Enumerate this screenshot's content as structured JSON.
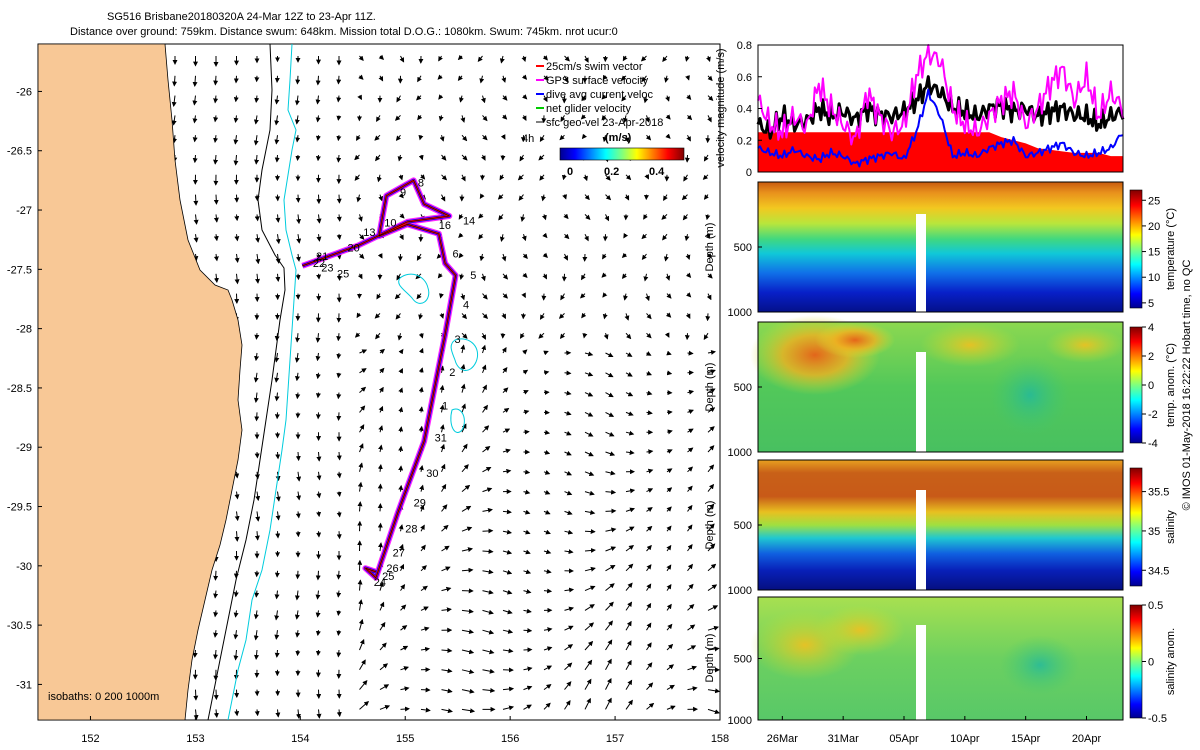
{
  "header": {
    "title_line1": "SG516 Brisbane20180320A 24-Mar 12Z to 23-Apr 11Z.",
    "title_line2": "Distance over ground: 759km. Distance swum: 648km. Mission total D.O.G.: 1080km. Swum: 745km. nrot ucur:0"
  },
  "footer": {
    "credit": "© IMOS 01-May-2018 16:22:22 Hobart time, no QC"
  },
  "colors": {
    "land": "#f8c896",
    "isobath_dark": "#000000",
    "isobath_cyan": "#00ccdd",
    "track_swim": "#ff0000",
    "track_gps": "#ff00ff",
    "track_dive": "#0000ff",
    "track_net": "#00cc00",
    "vel_black": "#000000",
    "vel_magenta": "#ff00ff",
    "vel_blue": "#0000ff",
    "vel_red": "#ff0000"
  },
  "chart_data": [
    {
      "type": "scatter",
      "title": "Glider track map",
      "xlabel": "",
      "ylabel": "",
      "xlim": [
        151.5,
        158.0
      ],
      "ylim": [
        -31.3,
        -25.6
      ],
      "x_ticks": [
        "152",
        "153",
        "154",
        "155",
        "156",
        "157",
        "158"
      ],
      "y_ticks": [
        "-26",
        "-26.5",
        "-27",
        "-27.5",
        "-28",
        "-28.5",
        "-29",
        "-29.5",
        "-30",
        "-30.5",
        "-31"
      ],
      "legend": {
        "items": [
          "25cm/s swim vector",
          "GPS surface velocity",
          "dive avg current veloc",
          "net glider velocity",
          "sfc geo-vel 23-Apr-2018"
        ],
        "interval_label": "4h",
        "colorbar_title": "(m/s)",
        "colorbar_ticks": [
          "0",
          "0.2",
          "0.4"
        ],
        "colorbar_range": [
          0,
          0.5
        ]
      },
      "isobath_note": "isobaths: 0   200  1000m",
      "track_waypoints": [
        {
          "lon": 154.72,
          "lat": -30.05
        },
        {
          "lon": 154.62,
          "lat": -30.02
        },
        {
          "lon": 154.72,
          "lat": -30.1
        },
        {
          "lon": 154.93,
          "lat": -29.55
        },
        {
          "lon": 155.18,
          "lat": -28.95
        },
        {
          "lon": 155.28,
          "lat": -28.5
        },
        {
          "lon": 155.38,
          "lat": -28.05
        },
        {
          "lon": 155.48,
          "lat": -27.55
        },
        {
          "lon": 155.38,
          "lat": -27.45
        },
        {
          "lon": 155.32,
          "lat": -27.2
        },
        {
          "lon": 155.02,
          "lat": -27.12
        },
        {
          "lon": 154.75,
          "lat": -27.22
        },
        {
          "lon": 154.82,
          "lat": -26.88
        },
        {
          "lon": 155.08,
          "lat": -26.75
        },
        {
          "lon": 155.18,
          "lat": -26.95
        },
        {
          "lon": 155.42,
          "lat": -27.05
        },
        {
          "lon": 155.02,
          "lat": -27.1
        },
        {
          "lon": 154.55,
          "lat": -27.3
        },
        {
          "lon": 154.02,
          "lat": -27.47
        }
      ],
      "day_labels": [
        {
          "text": "1",
          "lon": 155.35,
          "lat": -28.68
        },
        {
          "text": "2",
          "lon": 155.42,
          "lat": -28.4
        },
        {
          "text": "3",
          "lon": 155.47,
          "lat": -28.12
        },
        {
          "text": "4",
          "lon": 155.55,
          "lat": -27.83
        },
        {
          "text": "5",
          "lon": 155.62,
          "lat": -27.58
        },
        {
          "text": "6",
          "lon": 155.45,
          "lat": -27.4
        },
        {
          "text": "8",
          "lon": 155.12,
          "lat": -26.8
        },
        {
          "text": "9",
          "lon": 154.95,
          "lat": -26.88
        },
        {
          "text": "10",
          "lon": 154.8,
          "lat": -27.14
        },
        {
          "text": "13",
          "lon": 154.6,
          "lat": -27.22
        },
        {
          "text": "14",
          "lon": 155.55,
          "lat": -27.12
        },
        {
          "text": "16",
          "lon": 155.32,
          "lat": -27.16
        },
        {
          "text": "20",
          "lon": 154.45,
          "lat": -27.35
        },
        {
          "text": "21",
          "lon": 154.15,
          "lat": -27.42
        },
        {
          "text": "22",
          "lon": 154.12,
          "lat": -27.48
        },
        {
          "text": "23",
          "lon": 154.2,
          "lat": -27.52
        },
        {
          "text": "24",
          "lon": 154.7,
          "lat": -30.17
        },
        {
          "text": "25",
          "lon": 154.78,
          "lat": -30.12
        },
        {
          "text": "25",
          "lon": 154.35,
          "lat": -27.57
        },
        {
          "text": "26",
          "lon": 154.82,
          "lat": -30.05
        },
        {
          "text": "27",
          "lon": 154.88,
          "lat": -29.92
        },
        {
          "text": "28",
          "lon": 155.0,
          "lat": -29.72
        },
        {
          "text": "29",
          "lon": 155.08,
          "lat": -29.5
        },
        {
          "text": "30",
          "lon": 155.2,
          "lat": -29.25
        },
        {
          "text": "31",
          "lon": 155.28,
          "lat": -28.95
        }
      ]
    },
    {
      "type": "line",
      "title": "Velocity magnitude",
      "ylabel": "velocity magnitude (m/s)",
      "ylim": [
        0,
        0.8
      ],
      "y_ticks": [
        "0.8",
        "0.6",
        "0.4",
        "0.2",
        "0"
      ],
      "days_span": 30,
      "series": [
        {
          "name": "GPS surface velocity",
          "color": "#ff00ff",
          "values": [
            0.45,
            0.3,
            0.25,
            0.35,
            0.28,
            0.55,
            0.4,
            0.3,
            0.2,
            0.5,
            0.35,
            0.25,
            0.3,
            0.6,
            0.75,
            0.7,
            0.4,
            0.3,
            0.25,
            0.35,
            0.45,
            0.5,
            0.3,
            0.4,
            0.55,
            0.65,
            0.45,
            0.6,
            0.35,
            0.5,
            0.4
          ]
        },
        {
          "name": "net glider velocity",
          "color": "#000000",
          "values": [
            0.3,
            0.25,
            0.35,
            0.3,
            0.32,
            0.4,
            0.35,
            0.38,
            0.33,
            0.4,
            0.36,
            0.35,
            0.38,
            0.45,
            0.55,
            0.5,
            0.4,
            0.38,
            0.35,
            0.4,
            0.42,
            0.38,
            0.4,
            0.35,
            0.38,
            0.4,
            0.36,
            0.35,
            0.3,
            0.35,
            0.38
          ]
        },
        {
          "name": "dive avg current veloc",
          "color": "#0000ff",
          "values": [
            0.15,
            0.12,
            0.1,
            0.14,
            0.1,
            0.08,
            0.12,
            0.1,
            0.05,
            0.08,
            0.1,
            0.12,
            0.08,
            0.25,
            0.5,
            0.35,
            0.1,
            0.12,
            0.1,
            0.15,
            0.18,
            0.2,
            0.1,
            0.12,
            0.15,
            0.18,
            0.12,
            0.1,
            0.12,
            0.15,
            0.25
          ]
        },
        {
          "name": "swim speed",
          "color": "#ff0000",
          "values": [
            0.25,
            0.25,
            0.25,
            0.25,
            0.25,
            0.25,
            0.25,
            0.25,
            0.25,
            0.25,
            0.25,
            0.25,
            0.25,
            0.25,
            0.25,
            0.25,
            0.25,
            0.25,
            0.25,
            0.25,
            0.22,
            0.2,
            0.18,
            0.15,
            0.14,
            0.13,
            0.12,
            0.12,
            0.12,
            0.1,
            0.1
          ]
        }
      ]
    },
    {
      "type": "heatmap",
      "title": "temperature section",
      "ylabel": "Depth (m)",
      "y_ticks": [
        "500",
        "1000"
      ],
      "ylim": [
        1000,
        0
      ],
      "colorbar_label": "temperature (°C)",
      "colorbar_ticks": [
        "25",
        "20",
        "15",
        "10",
        "5"
      ],
      "colorbar_range": [
        4,
        27
      ],
      "gap_days": [
        11.6,
        12.2
      ]
    },
    {
      "type": "heatmap",
      "title": "temperature anomaly section",
      "ylabel": "Depth (m)",
      "y_ticks": [
        "500",
        "1000"
      ],
      "ylim": [
        1000,
        0
      ],
      "colorbar_label": "temp. anom. (°C)",
      "colorbar_ticks": [
        "4",
        "2",
        "0",
        "-2",
        "-4"
      ],
      "colorbar_range": [
        -4,
        4
      ],
      "gap_days": [
        11.6,
        12.2
      ]
    },
    {
      "type": "heatmap",
      "title": "salinity section",
      "ylabel": "Depth (m)",
      "y_ticks": [
        "500",
        "1000"
      ],
      "ylim": [
        1000,
        0
      ],
      "colorbar_label": "salinity",
      "colorbar_ticks": [
        "35.5",
        "35",
        "34.5"
      ],
      "colorbar_range": [
        34.3,
        35.8
      ],
      "gap_days": [
        11.6,
        12.2
      ]
    },
    {
      "type": "heatmap",
      "title": "salinity anomaly section",
      "ylabel": "Depth (m)",
      "y_ticks": [
        "500",
        "1000"
      ],
      "ylim": [
        1000,
        0
      ],
      "colorbar_label": "salinity anom.",
      "colorbar_ticks": [
        "0.5",
        "0",
        "-0.5"
      ],
      "colorbar_range": [
        -0.5,
        0.5
      ],
      "gap_days": [
        11.6,
        12.2
      ],
      "x_ticks": [
        "26Mar",
        "31Mar",
        "05Apr",
        "10Apr",
        "15Apr",
        "20Apr"
      ],
      "x_tick_days": [
        2,
        7,
        12,
        17,
        22,
        27
      ]
    }
  ]
}
